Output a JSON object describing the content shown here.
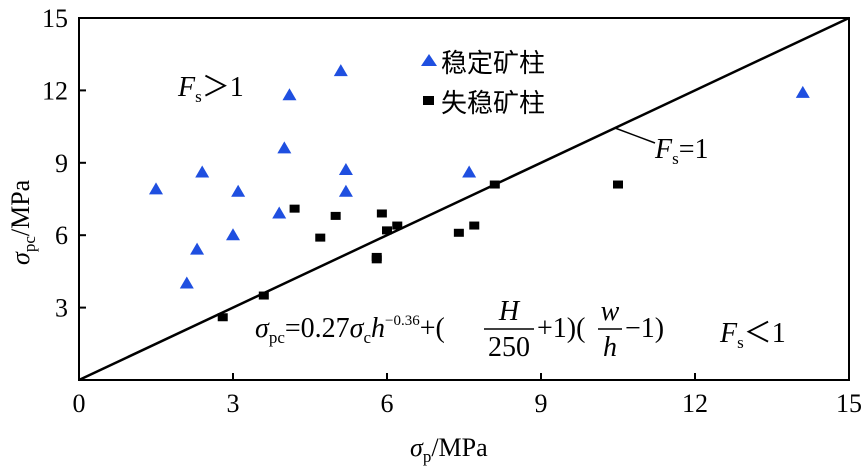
{
  "chart_data": {
    "type": "scatter",
    "xlim": [
      0,
      15
    ],
    "ylim": [
      0,
      15
    ],
    "xticks": [
      "0",
      "3",
      "6",
      "9",
      "12",
      "15"
    ],
    "yticks": [
      "0",
      "3",
      "6",
      "9",
      "12",
      "15"
    ],
    "xlabel": {
      "main": "σ",
      "sub": "p",
      "unit": "/MPa"
    },
    "ylabel": {
      "main": "σ",
      "sub": "pc",
      "unit": "/MPa"
    },
    "grid": false,
    "legend_position": "top-center",
    "series": [
      {
        "name": "稳定矿柱",
        "marker": "triangle",
        "color": "#1f4fe0",
        "points": [
          [
            1.5,
            7.9
          ],
          [
            2.1,
            4.0
          ],
          [
            2.3,
            5.4
          ],
          [
            2.4,
            8.6
          ],
          [
            3.0,
            6.0
          ],
          [
            3.1,
            7.8
          ],
          [
            3.9,
            6.9
          ],
          [
            4.0,
            9.6
          ],
          [
            4.1,
            11.8
          ],
          [
            5.1,
            12.8
          ],
          [
            5.2,
            8.7
          ],
          [
            5.2,
            7.8
          ],
          [
            7.6,
            8.6
          ],
          [
            14.1,
            11.9
          ]
        ]
      },
      {
        "name": "失稳矿柱",
        "marker": "square",
        "color": "#000000",
        "points": [
          [
            2.8,
            2.6
          ],
          [
            3.6,
            3.5
          ],
          [
            4.2,
            7.1
          ],
          [
            4.7,
            5.9
          ],
          [
            5.0,
            6.8
          ],
          [
            5.8,
            5.1
          ],
          [
            5.8,
            5.0
          ],
          [
            5.9,
            6.9
          ],
          [
            6.0,
            6.2
          ],
          [
            6.2,
            6.4
          ],
          [
            7.4,
            6.1
          ],
          [
            7.7,
            6.4
          ],
          [
            8.1,
            8.1
          ],
          [
            10.5,
            8.1
          ]
        ]
      }
    ],
    "reference_line": {
      "from": [
        0,
        0
      ],
      "to": [
        15,
        15
      ],
      "label": "=1",
      "label_var": "F",
      "label_sub": "s"
    },
    "annotations": {
      "upper_region": {
        "var": "F",
        "sub": "s",
        "rel": "＞1"
      },
      "lower_region": {
        "var": "F",
        "sub": "s",
        "rel": "＜1"
      },
      "formula": {
        "lhs_var": "σ",
        "lhs_sub": "pc",
        "equals_coef": "=0.27",
        "sigma": "σ",
        "sigma_sub": "c",
        "h": "h",
        "exponent": "−0.36",
        "plus_open": "+(",
        "H": "H",
        "den1": "250",
        "plus_one": "+1)(",
        "w": "w",
        "den2": "h",
        "minus_one": "−1)"
      }
    }
  }
}
